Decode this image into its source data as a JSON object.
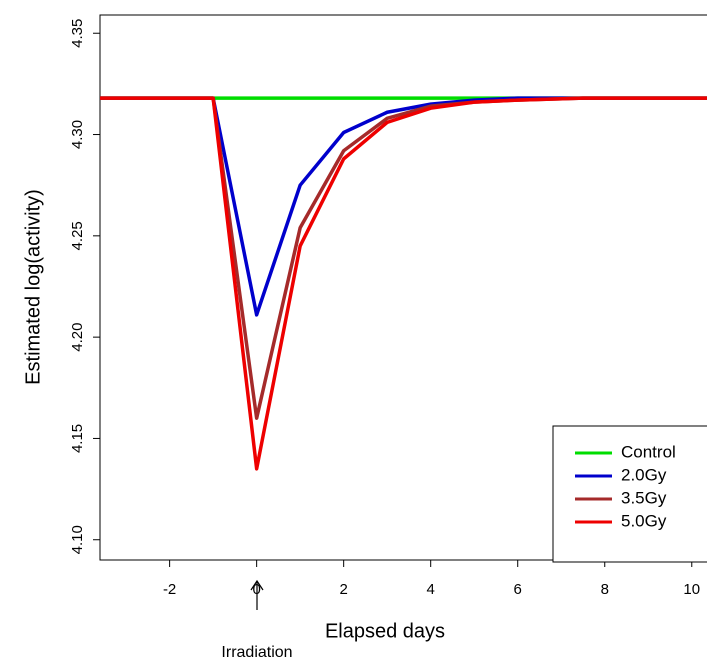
{
  "chart_data": {
    "type": "line",
    "x_label": "Elapsed days",
    "y_label": "Estimated log(activity)",
    "annotation": "Irradiation",
    "x": [
      -3.6,
      -1,
      0,
      1,
      2,
      3,
      4,
      5,
      6,
      7.5,
      10.35
    ],
    "series": [
      {
        "name": "Control",
        "color": "#00dd00",
        "values": [
          4.318,
          4.318,
          4.318,
          4.318,
          4.318,
          4.318,
          4.318,
          4.318,
          4.318,
          4.318,
          4.318
        ]
      },
      {
        "name": "2.0Gy",
        "color": "#0000cc",
        "values": [
          4.318,
          4.318,
          4.211,
          4.275,
          4.301,
          4.311,
          4.315,
          4.317,
          4.318,
          4.318,
          4.318
        ]
      },
      {
        "name": "3.5Gy",
        "color": "#a52a2a",
        "values": [
          4.318,
          4.318,
          4.16,
          4.254,
          4.292,
          4.308,
          4.314,
          4.316,
          4.317,
          4.318,
          4.318
        ]
      },
      {
        "name": "5.0Gy",
        "color": "#ee0000",
        "values": [
          4.318,
          4.318,
          4.135,
          4.245,
          4.288,
          4.306,
          4.313,
          4.316,
          4.317,
          4.318,
          4.318
        ]
      }
    ],
    "xlim": [
      -3.6,
      10.35
    ],
    "xticks": [
      -2,
      0,
      2,
      4,
      6,
      8,
      10
    ],
    "ylim": [
      4.09,
      4.359
    ],
    "yticks": [
      {
        "value": 4.1,
        "label": "4.10"
      },
      4.15,
      {
        "value": 4.2,
        "label": "4.20"
      },
      4.25,
      {
        "value": 4.3,
        "label": "4.30"
      },
      4.35
    ],
    "legend": "bottom-right",
    "grid": false
  }
}
